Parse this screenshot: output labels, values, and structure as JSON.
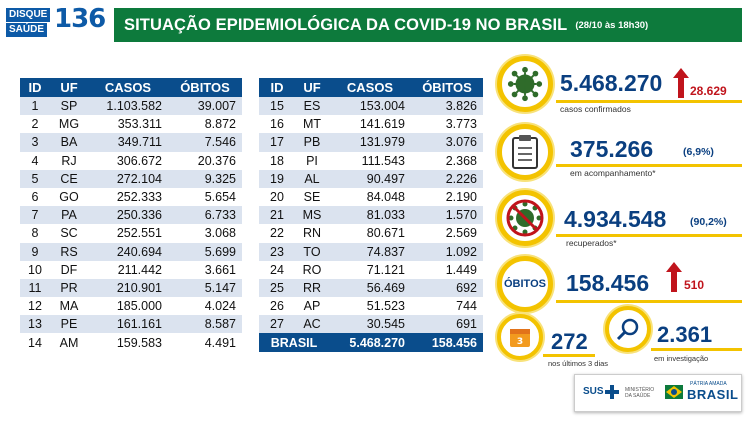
{
  "header": {
    "logo_line1": "DISQUE",
    "logo_line2": "SAÚDE",
    "logo_number": "136",
    "title": "SITUAÇÃO EPIDEMIOLÓGICA DA COVID-19 NO BRASIL",
    "date": "(28/10 às 18h30)"
  },
  "table": {
    "headers": [
      "ID",
      "UF",
      "CASOS",
      "ÓBITOS"
    ],
    "left_rows": [
      [
        "1",
        "SP",
        "1.103.582",
        "39.007"
      ],
      [
        "2",
        "MG",
        "353.311",
        "8.872"
      ],
      [
        "3",
        "BA",
        "349.711",
        "7.546"
      ],
      [
        "4",
        "RJ",
        "306.672",
        "20.376"
      ],
      [
        "5",
        "CE",
        "272.104",
        "9.325"
      ],
      [
        "6",
        "GO",
        "252.333",
        "5.654"
      ],
      [
        "7",
        "PA",
        "250.336",
        "6.733"
      ],
      [
        "8",
        "SC",
        "252.551",
        "3.068"
      ],
      [
        "9",
        "RS",
        "240.694",
        "5.699"
      ],
      [
        "10",
        "DF",
        "211.442",
        "3.661"
      ],
      [
        "11",
        "PR",
        "210.901",
        "5.147"
      ],
      [
        "12",
        "MA",
        "185.000",
        "4.024"
      ],
      [
        "13",
        "PE",
        "161.161",
        "8.587"
      ],
      [
        "14",
        "AM",
        "159.583",
        "4.491"
      ]
    ],
    "right_rows": [
      [
        "15",
        "ES",
        "153.004",
        "3.826"
      ],
      [
        "16",
        "MT",
        "141.619",
        "3.773"
      ],
      [
        "17",
        "PB",
        "131.979",
        "3.076"
      ],
      [
        "18",
        "PI",
        "111.543",
        "2.368"
      ],
      [
        "19",
        "AL",
        "90.497",
        "2.226"
      ],
      [
        "20",
        "SE",
        "84.048",
        "2.190"
      ],
      [
        "21",
        "MS",
        "81.033",
        "1.570"
      ],
      [
        "22",
        "RN",
        "80.671",
        "2.569"
      ],
      [
        "23",
        "TO",
        "74.837",
        "1.092"
      ],
      [
        "24",
        "RO",
        "71.121",
        "1.449"
      ],
      [
        "25",
        "RR",
        "56.469",
        "692"
      ],
      [
        "26",
        "AP",
        "51.523",
        "744"
      ],
      [
        "27",
        "AC",
        "30.545",
        "691"
      ]
    ],
    "total": {
      "label": "BRASIL",
      "cases": "5.468.270",
      "deaths": "158.456"
    }
  },
  "stats": {
    "confirmed": {
      "value": "5.468.270",
      "increase": "28.629",
      "caption": "casos confirmados",
      "icon": "virus-icon"
    },
    "monitoring": {
      "value": "375.266",
      "pct": "(6,9%)",
      "caption": "em acompanhamento*",
      "icon": "clipboard-icon"
    },
    "recovered": {
      "value": "4.934.548",
      "pct": "(90,2%)",
      "caption": "recuperados*",
      "icon": "crossed-virus-icon"
    },
    "deaths": {
      "label": "ÓBITOS",
      "value": "158.456",
      "increase": "510"
    },
    "last3": {
      "value": "272",
      "caption": "nos últimos 3 dias",
      "icon": "calendar-icon",
      "icon_text": "3"
    },
    "investigation": {
      "value": "2.361",
      "caption": "em investigação",
      "icon": "magnifier-icon"
    }
  },
  "footer": {
    "sus": "SUS",
    "ministry": "MINISTÉRIO DA SAÚDE",
    "slogan": "PÁTRIA AMADA",
    "brasil": "BRASIL"
  },
  "colors": {
    "title_green": "#0d7a3c",
    "table_blue": "#0a4d8c",
    "accent_yellow": "#f3c300",
    "increase_red": "#c0141c",
    "number_blue": "#0a3f80"
  }
}
